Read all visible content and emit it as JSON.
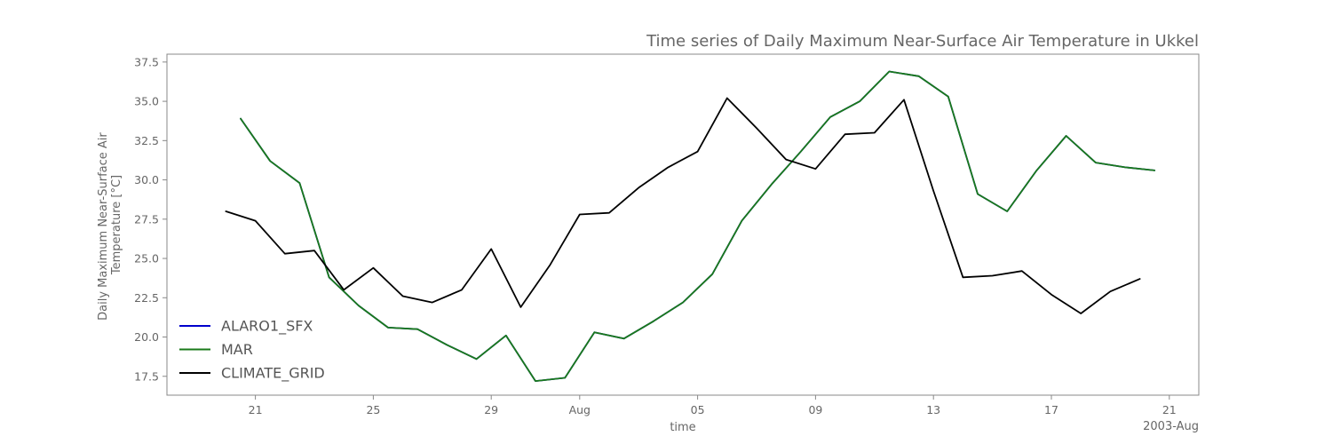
{
  "chart_data": {
    "type": "line",
    "title": "Time series of Daily Maximum Near-Surface Air Temperature in Ukkel",
    "xlabel": "time",
    "ylabel": "Daily Maximum Near-Surface Air Temperature [°C]",
    "ylabel_lines": [
      "Daily Maximum Near-Surface Air",
      "Temperature [°C]"
    ],
    "x_range": [
      "2003-07-18",
      "2003-08-22"
    ],
    "ylim": [
      16.3,
      38.0
    ],
    "yticks": [
      17.5,
      20.0,
      22.5,
      25.0,
      27.5,
      30.0,
      32.5,
      35.0,
      37.5
    ],
    "ytick_labels": [
      "17.5",
      "20.0",
      "22.5",
      "25.0",
      "27.5",
      "30.0",
      "32.5",
      "35.0",
      "37.5"
    ],
    "xticks": [
      "2003-07-21",
      "2003-07-25",
      "2003-07-29",
      "2003-08-01",
      "2003-08-05",
      "2003-08-09",
      "2003-08-13",
      "2003-08-17",
      "2003-08-21"
    ],
    "xtick_labels": [
      "21",
      "25",
      "29",
      "Aug",
      "05",
      "09",
      "13",
      "17",
      "21"
    ],
    "x_offset_label": "2003-Aug",
    "grid": false,
    "legend": "lower-left",
    "series": [
      {
        "name": "ALARO1_SFX",
        "color": "#0000cc",
        "x": [
          "2003-07-20T12",
          "2003-07-21T12",
          "2003-07-22T12",
          "2003-07-23T12",
          "2003-07-24T12",
          "2003-07-25T12",
          "2003-07-26T12",
          "2003-07-27T12",
          "2003-07-28T12",
          "2003-07-29T12",
          "2003-07-30T12",
          "2003-07-31T12",
          "2003-08-01T12",
          "2003-08-02T12",
          "2003-08-03T12",
          "2003-08-04T12",
          "2003-08-05T12",
          "2003-08-06T12",
          "2003-08-07T12",
          "2003-08-08T12",
          "2003-08-09T12",
          "2003-08-10T12",
          "2003-08-11T12",
          "2003-08-12T12",
          "2003-08-13T12",
          "2003-08-14T12",
          "2003-08-15T12",
          "2003-08-16T12",
          "2003-08-17T12",
          "2003-08-18T12",
          "2003-08-19T12",
          "2003-08-20T12"
        ],
        "y": [
          33.9,
          31.2,
          29.8,
          23.8,
          22.0,
          20.6,
          20.5,
          19.5,
          18.6,
          20.1,
          17.2,
          17.4,
          20.3,
          19.9,
          21.0,
          22.2,
          24.0,
          27.4,
          29.7,
          31.8,
          34.0,
          35.0,
          36.9,
          36.6,
          35.3,
          29.1,
          28.0,
          30.6,
          32.8,
          31.1,
          30.8,
          30.6
        ]
      },
      {
        "name": "MAR",
        "color": "#1a7a1a",
        "x": [
          "2003-07-20T12",
          "2003-07-21T12",
          "2003-07-22T12",
          "2003-07-23T12",
          "2003-07-24T12",
          "2003-07-25T12",
          "2003-07-26T12",
          "2003-07-27T12",
          "2003-07-28T12",
          "2003-07-29T12",
          "2003-07-30T12",
          "2003-07-31T12",
          "2003-08-01T12",
          "2003-08-02T12",
          "2003-08-03T12",
          "2003-08-04T12",
          "2003-08-05T12",
          "2003-08-06T12",
          "2003-08-07T12",
          "2003-08-08T12",
          "2003-08-09T12",
          "2003-08-10T12",
          "2003-08-11T12",
          "2003-08-12T12",
          "2003-08-13T12",
          "2003-08-14T12",
          "2003-08-15T12",
          "2003-08-16T12",
          "2003-08-17T12",
          "2003-08-18T12",
          "2003-08-19T12",
          "2003-08-20T12"
        ],
        "y": [
          33.9,
          31.2,
          29.8,
          23.8,
          22.0,
          20.6,
          20.5,
          19.5,
          18.6,
          20.1,
          17.2,
          17.4,
          20.3,
          19.9,
          21.0,
          22.2,
          24.0,
          27.4,
          29.7,
          31.8,
          34.0,
          35.0,
          36.9,
          36.6,
          35.3,
          29.1,
          28.0,
          30.6,
          32.8,
          31.1,
          30.8,
          30.6
        ]
      },
      {
        "name": "CLIMATE_GRID",
        "color": "#000000",
        "x": [
          "2003-07-20",
          "2003-07-21",
          "2003-07-22",
          "2003-07-23",
          "2003-07-24",
          "2003-07-25",
          "2003-07-26",
          "2003-07-27",
          "2003-07-28",
          "2003-07-29",
          "2003-07-30",
          "2003-07-31",
          "2003-08-01",
          "2003-08-02",
          "2003-08-03",
          "2003-08-04",
          "2003-08-05",
          "2003-08-06",
          "2003-08-07",
          "2003-08-08",
          "2003-08-09",
          "2003-08-10",
          "2003-08-11",
          "2003-08-12",
          "2003-08-13",
          "2003-08-14",
          "2003-08-15",
          "2003-08-16",
          "2003-08-17",
          "2003-08-18",
          "2003-08-19",
          "2003-08-20"
        ],
        "y": [
          28.0,
          27.4,
          25.3,
          25.5,
          23.0,
          24.4,
          22.6,
          22.2,
          23.0,
          25.6,
          21.9,
          24.6,
          27.8,
          27.9,
          29.5,
          30.8,
          31.8,
          35.2,
          33.3,
          31.3,
          30.7,
          32.9,
          33.0,
          35.1,
          29.3,
          23.8,
          23.9,
          24.2,
          22.7,
          21.5,
          22.9,
          23.7
        ]
      }
    ]
  }
}
